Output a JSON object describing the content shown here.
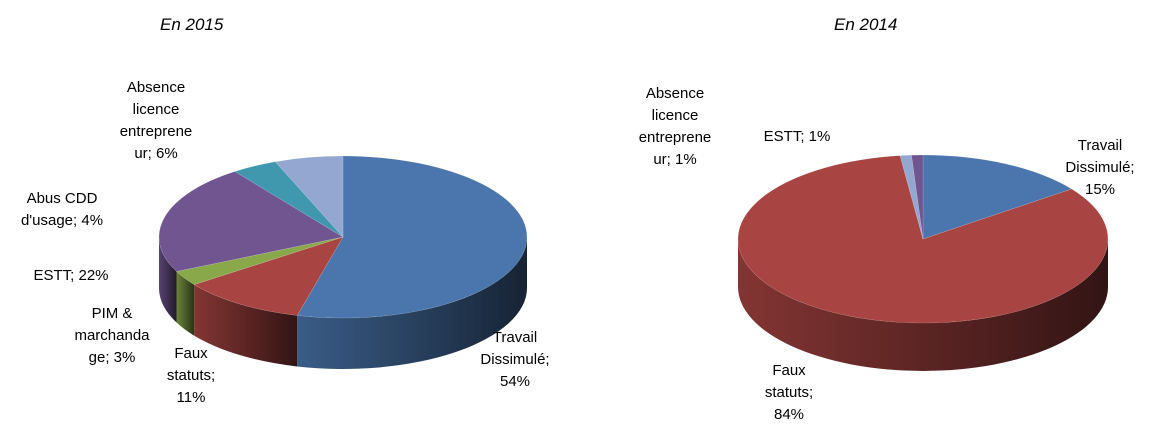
{
  "chart_data": [
    {
      "type": "pie",
      "title": "En 2015",
      "categories": [
        "Travail Dissimulé",
        "Faux statuts",
        "PIM & marchandage",
        "ESTT",
        "Abus CDD d'usage",
        "Absence licence entrepreneur"
      ],
      "values": [
        54,
        11,
        3,
        22,
        4,
        6
      ],
      "colors": [
        "#4a76ad",
        "#a84442",
        "#88a84a",
        "#705591",
        "#3f98ad",
        "#93a7d1"
      ],
      "labels": [
        [
          "Travail",
          "Dissimulé;",
          "54%"
        ],
        [
          "Faux",
          "statuts;",
          "11%"
        ],
        [
          "PIM &",
          "marchanda",
          "ge; 3%"
        ],
        [
          "ESTT; 22%"
        ],
        [
          "Abus CDD",
          "d'usage; 4%"
        ],
        [
          "Absence",
          "licence",
          "entreprene",
          "ur; 6%"
        ]
      ]
    },
    {
      "type": "pie",
      "title": "En 2014",
      "categories": [
        "Travail Dissimulé",
        "Faux statuts",
        "Absence licence entrepreneur",
        "ESTT"
      ],
      "values": [
        15,
        84,
        1,
        1
      ],
      "colors": [
        "#4a76ad",
        "#a84442",
        "#93a7d1",
        "#705591"
      ],
      "labels": [
        [
          "Travail",
          "Dissimulé;",
          "15%"
        ],
        [
          "Faux",
          "statuts;",
          "84%"
        ],
        [
          "Absence",
          "licence",
          "entreprene",
          "ur; 1%"
        ],
        [
          "ESTT; 1%"
        ]
      ]
    }
  ]
}
